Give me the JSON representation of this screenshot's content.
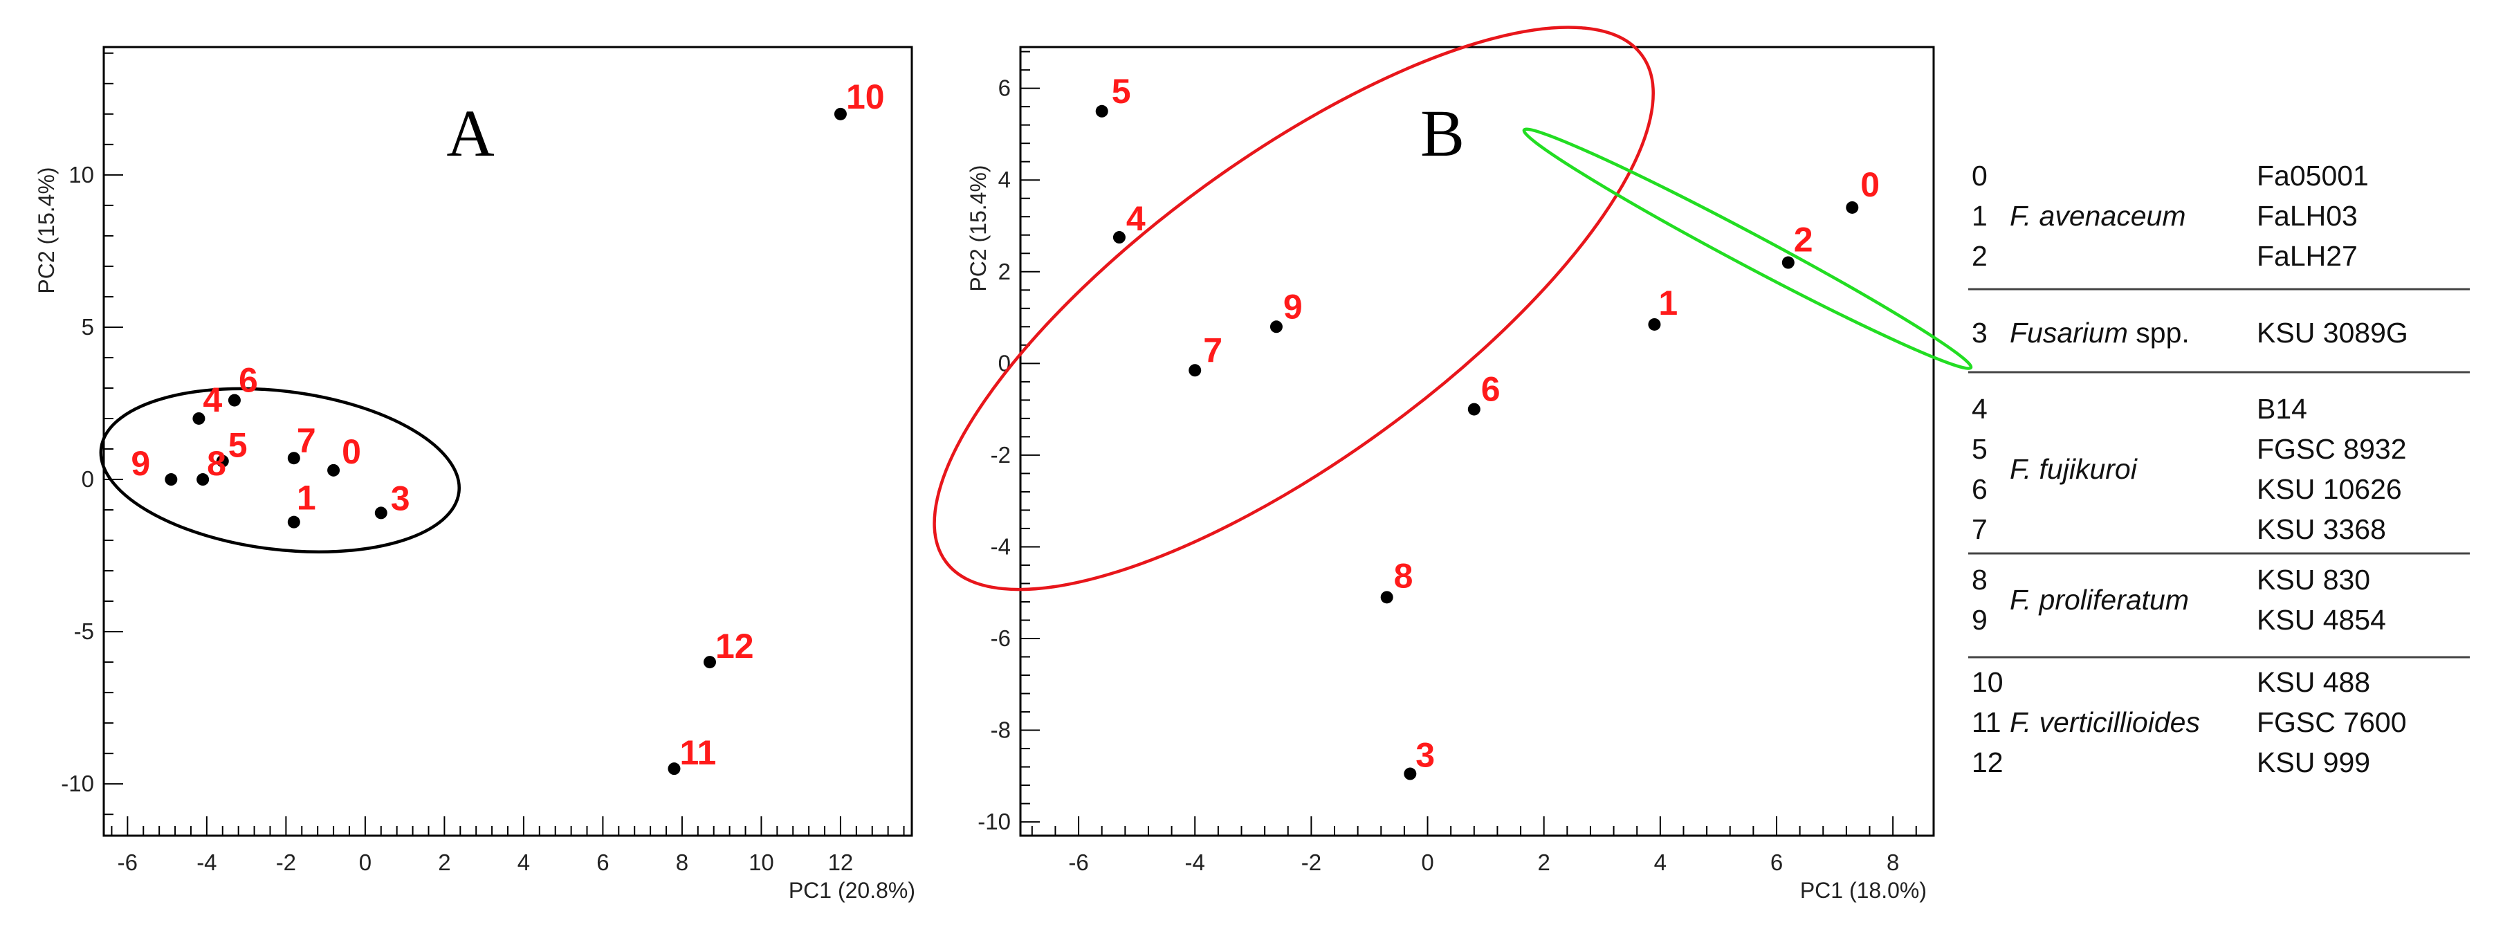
{
  "chart_data": [
    {
      "type": "scatter",
      "panel_label": "A",
      "xlabel": "PC1 (20.8%)",
      "ylabel": "PC2 (15.4%)",
      "xlim": [
        -6.6,
        13.8
      ],
      "ylim": [
        -11.7,
        14.2
      ],
      "xticks": [
        -6,
        -4,
        -2,
        0,
        2,
        4,
        6,
        8,
        10,
        12
      ],
      "yticks": [
        -10,
        -5,
        0,
        5,
        10
      ],
      "points": [
        {
          "label": "0",
          "x": -0.8,
          "y": 0.3
        },
        {
          "label": "1",
          "x": -1.8,
          "y": -1.4
        },
        {
          "label": "3",
          "x": 0.4,
          "y": -1.1
        },
        {
          "label": "4",
          "x": -4.2,
          "y": 2.0
        },
        {
          "label": "5",
          "x": -3.6,
          "y": 0.6
        },
        {
          "label": "6",
          "x": -3.3,
          "y": 2.6
        },
        {
          "label": "7",
          "x": -1.8,
          "y": 0.7
        },
        {
          "label": "8",
          "x": -4.1,
          "y": 0.0
        },
        {
          "label": "9",
          "x": -4.9,
          "y": 0.0
        },
        {
          "label": "10",
          "x": 12.0,
          "y": 12.0
        },
        {
          "label": "11",
          "x": 7.8,
          "y": -9.5
        },
        {
          "label": "12",
          "x": 8.7,
          "y": -6.0
        }
      ],
      "ellipses": [
        {
          "color": "#000000",
          "cx": -2.15,
          "cy": 0.3,
          "rx": 4.55,
          "ry": 2.6,
          "rotation_deg": -7
        }
      ],
      "grid": false,
      "legend": "none"
    },
    {
      "type": "scatter",
      "panel_label": "B",
      "xlabel": "PC1 (18.0%)",
      "ylabel": "PC2 (15.4%)",
      "xlim": [
        -7.0,
        8.7
      ],
      "ylim": [
        -10.3,
        6.9
      ],
      "xticks": [
        -6,
        -4,
        -2,
        0,
        2,
        4,
        6,
        8
      ],
      "yticks": [
        -10,
        -8,
        -6,
        -4,
        -2,
        0,
        2,
        4,
        6
      ],
      "points": [
        {
          "label": "0",
          "x": 7.3,
          "y": 3.4
        },
        {
          "label": "1",
          "x": 3.9,
          "y": 0.85
        },
        {
          "label": "2",
          "x": 6.2,
          "y": 2.2
        },
        {
          "label": "3",
          "x": -0.3,
          "y": -8.95
        },
        {
          "label": "4",
          "x": -5.3,
          "y": 2.75
        },
        {
          "label": "5",
          "x": -5.6,
          "y": 5.5
        },
        {
          "label": "6",
          "x": 0.8,
          "y": -1.0
        },
        {
          "label": "7",
          "x": -4.0,
          "y": -0.15
        },
        {
          "label": "8",
          "x": -0.7,
          "y": -5.1
        },
        {
          "label": "9",
          "x": -2.6,
          "y": 0.8
        }
      ],
      "ellipses": [
        {
          "color": "#e8161b",
          "cx": -2.3,
          "cy": 1.2,
          "rx": 7.4,
          "ry": 3.3,
          "rotation_deg": 36
        },
        {
          "color": "#22dd22",
          "cx": 5.5,
          "cy": 2.5,
          "rx": 4.35,
          "ry": 0.35,
          "rotation_deg": -28
        }
      ],
      "grid": false,
      "legend": "none"
    }
  ],
  "legend_table": {
    "groups": [
      {
        "species": "F. avenaceum",
        "species_parts": [
          {
            "text": "F. avenaceum",
            "italic": true
          }
        ],
        "rows": [
          {
            "num": "0",
            "strain": "Fa05001"
          },
          {
            "num": "1",
            "strain": "FaLH03"
          },
          {
            "num": "2",
            "strain": "FaLH27"
          }
        ]
      },
      {
        "species": "Fusarium spp.",
        "species_parts": [
          {
            "text": "Fusarium",
            "italic": true
          },
          {
            "text": " spp.",
            "italic": false
          }
        ],
        "rows": [
          {
            "num": "3",
            "strain": "KSU 3089G"
          }
        ]
      },
      {
        "species": "F. fujikuroi",
        "species_parts": [
          {
            "text": "F. fujikuroi",
            "italic": true
          }
        ],
        "rows": [
          {
            "num": "4",
            "strain": "B14"
          },
          {
            "num": "5",
            "strain": "FGSC 8932"
          },
          {
            "num": "6",
            "strain": "KSU 10626"
          },
          {
            "num": "7",
            "strain": "KSU 3368"
          }
        ]
      },
      {
        "species": "F. proliferatum",
        "species_parts": [
          {
            "text": "F. proliferatum",
            "italic": true
          }
        ],
        "rows": [
          {
            "num": "8",
            "strain": "KSU 830"
          },
          {
            "num": "9",
            "strain": "KSU 4854"
          }
        ]
      },
      {
        "species": "F. verticillioides",
        "species_parts": [
          {
            "text": "F. verticillioides",
            "italic": true
          }
        ],
        "rows": [
          {
            "num": "10",
            "strain": "KSU 488"
          },
          {
            "num": "11",
            "strain": "FGSC 7600"
          },
          {
            "num": "12",
            "strain": "KSU 999"
          }
        ]
      }
    ]
  }
}
